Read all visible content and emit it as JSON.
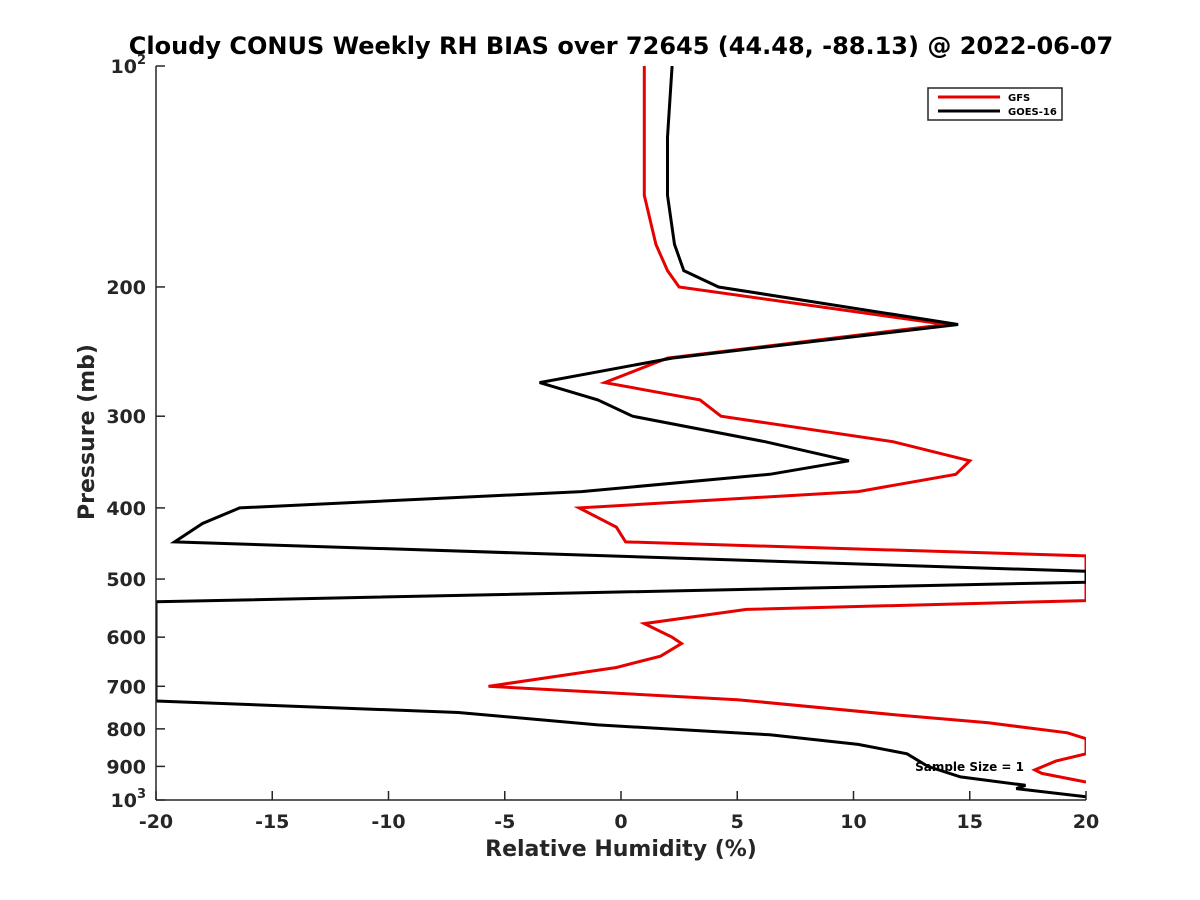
{
  "chart_data": {
    "type": "line",
    "title": "Cloudy CONUS Weekly RH BIAS over 72645 (44.48, -88.13) @ 2022-06-07",
    "xlabel": "Relative Humidity (%)",
    "ylabel": "Pressure (mb)",
    "xlim": [
      -20,
      20
    ],
    "ylim": [
      100,
      1000
    ],
    "y_scale": "log",
    "y_reversed": true,
    "grid": false,
    "legend_position": "top-right",
    "x_ticks": [
      -20,
      -15,
      -10,
      -5,
      0,
      5,
      10,
      15,
      20
    ],
    "x_tick_labels": [
      "-20",
      "-15",
      "-10",
      "-5",
      "0",
      "5",
      "10",
      "15",
      "20"
    ],
    "y_ticks": [
      100,
      200,
      300,
      400,
      500,
      600,
      700,
      800,
      900,
      1000
    ],
    "y_tick_labels": [
      "10^2",
      "200",
      "300",
      "400",
      "500",
      "600",
      "700",
      "800",
      "900",
      "10^3"
    ],
    "annotation": "Sample Size = 1",
    "series": [
      {
        "name": "GFS",
        "color": "#e60000",
        "points": [
          [
            1.0,
            100
          ],
          [
            1.0,
            125
          ],
          [
            1.0,
            150
          ],
          [
            1.5,
            175
          ],
          [
            2.0,
            190
          ],
          [
            2.5,
            200
          ],
          [
            14.0,
            225
          ],
          [
            2.0,
            250
          ],
          [
            -0.7,
            270
          ],
          [
            3.4,
            285
          ],
          [
            4.3,
            300
          ],
          [
            11.7,
            325
          ],
          [
            15.0,
            345
          ],
          [
            14.4,
            360
          ],
          [
            10.2,
            380
          ],
          [
            -1.8,
            400
          ],
          [
            -0.2,
            425
          ],
          [
            0.2,
            445
          ],
          [
            20.0,
            465
          ],
          [
            20.0,
            535
          ],
          [
            5.4,
            550
          ],
          [
            1.0,
            575
          ],
          [
            2.2,
            600
          ],
          [
            2.6,
            612
          ],
          [
            1.7,
            637
          ],
          [
            -0.2,
            660
          ],
          [
            -5.7,
            700
          ],
          [
            5.0,
            730
          ],
          [
            11.7,
            765
          ],
          [
            15.8,
            785
          ],
          [
            19.2,
            810
          ],
          [
            20.0,
            825
          ],
          [
            20.0,
            865
          ],
          [
            18.7,
            885
          ],
          [
            17.8,
            910
          ],
          [
            18.1,
            920
          ],
          [
            20.0,
            945
          ]
        ]
      },
      {
        "name": "GOES-16",
        "color": "#000000",
        "points": [
          [
            2.2,
            100
          ],
          [
            2.0,
            125
          ],
          [
            2.0,
            150
          ],
          [
            2.3,
            175
          ],
          [
            2.7,
            190
          ],
          [
            4.2,
            200
          ],
          [
            14.5,
            225
          ],
          [
            2.2,
            250
          ],
          [
            -3.5,
            270
          ],
          [
            -1.0,
            285
          ],
          [
            0.5,
            300
          ],
          [
            6.2,
            325
          ],
          [
            9.8,
            345
          ],
          [
            6.4,
            360
          ],
          [
            -1.7,
            380
          ],
          [
            -16.4,
            400
          ],
          [
            -18.0,
            420
          ],
          [
            -19.2,
            445
          ],
          [
            20.0,
            488
          ],
          [
            20.0,
            505
          ],
          [
            -20.0,
            537
          ],
          [
            -20.0,
            733
          ],
          [
            -7.0,
            760
          ],
          [
            -1.0,
            790
          ],
          [
            6.4,
            815
          ],
          [
            10.2,
            840
          ],
          [
            12.3,
            865
          ],
          [
            13.2,
            900
          ],
          [
            14.6,
            930
          ],
          [
            17.4,
            955
          ],
          [
            17.0,
            965
          ],
          [
            20.0,
            990
          ]
        ]
      }
    ]
  }
}
